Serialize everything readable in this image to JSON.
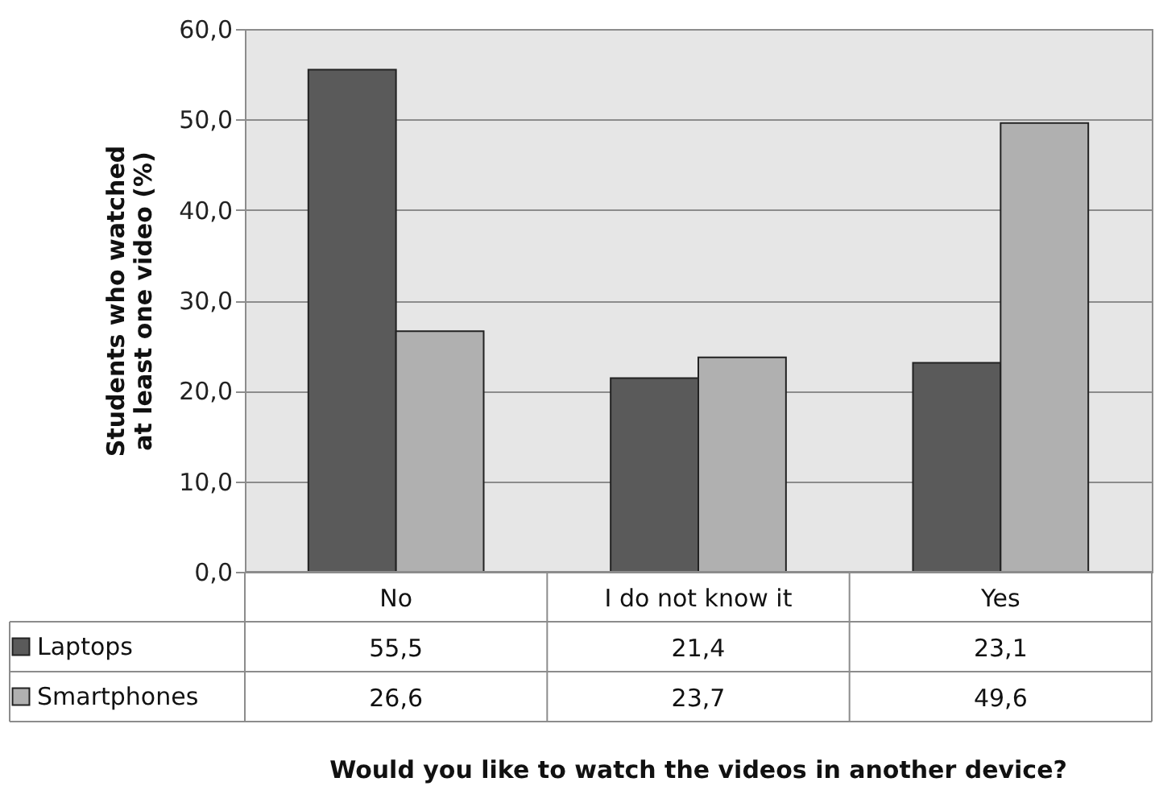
{
  "chart_data": {
    "type": "bar",
    "categories": [
      "No",
      "I do not know it",
      "Yes"
    ],
    "series": [
      {
        "name": "Laptops",
        "color": "#5a5a5a",
        "values": [
          55.5,
          21.4,
          23.1
        ],
        "value_labels": [
          "55,5",
          "21,4",
          "23,1"
        ]
      },
      {
        "name": "Smartphones",
        "color": "#b0b0b0",
        "values": [
          26.6,
          23.7,
          49.6
        ],
        "value_labels": [
          "26,6",
          "23,7",
          "49,6"
        ]
      }
    ],
    "annotations": [
      "Would you like to watch the videos in another device?"
    ],
    "ylabel": "Students who watched\nat least one video (%)",
    "ylim": [
      0,
      60
    ],
    "yticks": [
      {
        "value": 0,
        "label": "0,0"
      },
      {
        "value": 10,
        "label": "10,0"
      },
      {
        "value": 20,
        "label": "20,0"
      },
      {
        "value": 30,
        "label": "30,0"
      },
      {
        "value": 40,
        "label": "40,0"
      },
      {
        "value": 50,
        "label": "50,0"
      },
      {
        "value": 60,
        "label": "60,0"
      }
    ],
    "grid": "y",
    "legend": "bottom"
  }
}
